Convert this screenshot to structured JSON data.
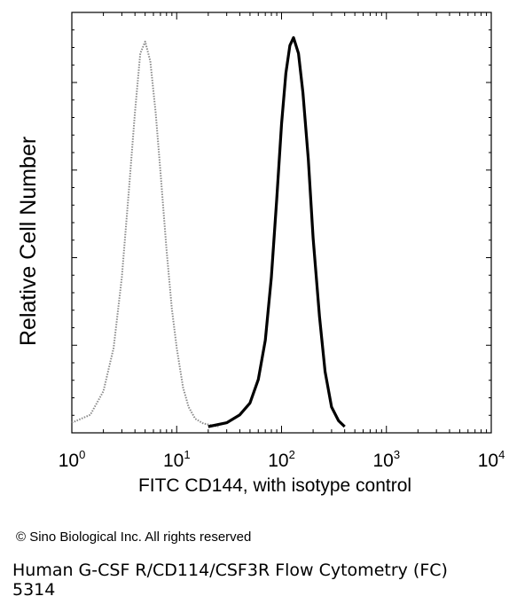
{
  "chart_data": {
    "type": "area",
    "title": "",
    "xlabel": "FITC CD144, with isotype control",
    "ylabel": "Relative Cell Number",
    "x_scale": "log",
    "xlim": [
      1,
      10000
    ],
    "ylim": [
      0,
      1
    ],
    "x_ticks": [
      {
        "value": 1,
        "base": "10",
        "exp": "0"
      },
      {
        "value": 10,
        "base": "10",
        "exp": "1"
      },
      {
        "value": 100,
        "base": "10",
        "exp": "2"
      },
      {
        "value": 1000,
        "base": "10",
        "exp": "3"
      },
      {
        "value": 10000,
        "base": "10",
        "exp": "4"
      }
    ],
    "grid": false,
    "series": [
      {
        "style": "dotted-gray",
        "color": "#8a8a8a",
        "points": [
          [
            1.0,
            0.01
          ],
          [
            1.5,
            0.03
          ],
          [
            2.0,
            0.09
          ],
          [
            2.5,
            0.2
          ],
          [
            3.0,
            0.38
          ],
          [
            3.5,
            0.6
          ],
          [
            4.0,
            0.8
          ],
          [
            4.5,
            0.95
          ],
          [
            5.0,
            0.98
          ],
          [
            5.6,
            0.93
          ],
          [
            6.3,
            0.8
          ],
          [
            7.0,
            0.65
          ],
          [
            8.0,
            0.45
          ],
          [
            9.0,
            0.3
          ],
          [
            10.0,
            0.2
          ],
          [
            11.5,
            0.1
          ],
          [
            13.0,
            0.05
          ],
          [
            15.0,
            0.02
          ],
          [
            18.0,
            0.008
          ],
          [
            25.0,
            0.0
          ]
        ]
      },
      {
        "style": "solid-black",
        "color": "#000000",
        "points": [
          [
            20,
            0.0
          ],
          [
            30,
            0.01
          ],
          [
            40,
            0.03
          ],
          [
            50,
            0.06
          ],
          [
            60,
            0.12
          ],
          [
            70,
            0.22
          ],
          [
            80,
            0.38
          ],
          [
            90,
            0.58
          ],
          [
            100,
            0.77
          ],
          [
            110,
            0.9
          ],
          [
            120,
            0.97
          ],
          [
            130,
            0.99
          ],
          [
            145,
            0.95
          ],
          [
            160,
            0.85
          ],
          [
            180,
            0.68
          ],
          [
            200,
            0.48
          ],
          [
            230,
            0.28
          ],
          [
            260,
            0.14
          ],
          [
            300,
            0.05
          ],
          [
            350,
            0.015
          ],
          [
            400,
            0.0
          ]
        ]
      }
    ]
  },
  "copyright": "© Sino Biological Inc. All rights reserved",
  "caption_line1": "Human G-CSF R/CD114/CSF3R Flow Cytometry (FC)",
  "caption_line2": "5314"
}
